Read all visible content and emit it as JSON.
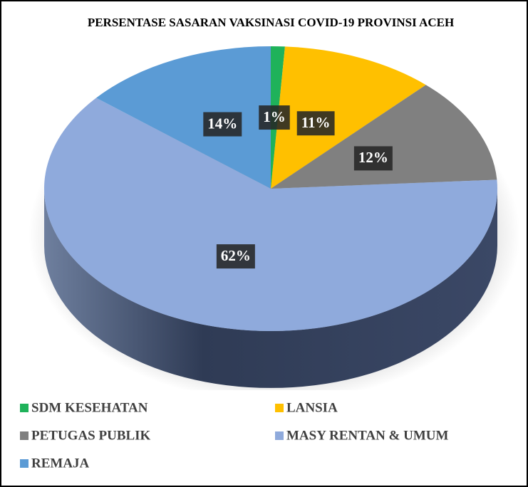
{
  "chart_data": {
    "type": "pie",
    "title": "PERSENTASE SASARAN  VAKSINASI COVID-19 PROVINSI ACEH",
    "categories": [
      "SDM KESEHATAN",
      "LANSIA",
      "PETUGAS PUBLIK",
      "MASY RENTAN & UMUM",
      "REMAJA"
    ],
    "values": [
      1,
      11,
      12,
      62,
      14
    ],
    "value_labels": [
      "1%",
      "11%",
      "12%",
      "62%",
      "14%"
    ],
    "colors": [
      "#1fb25a",
      "#ffc000",
      "#808080",
      "#8faadc",
      "#5b9bd5"
    ],
    "legend": "bottom"
  }
}
